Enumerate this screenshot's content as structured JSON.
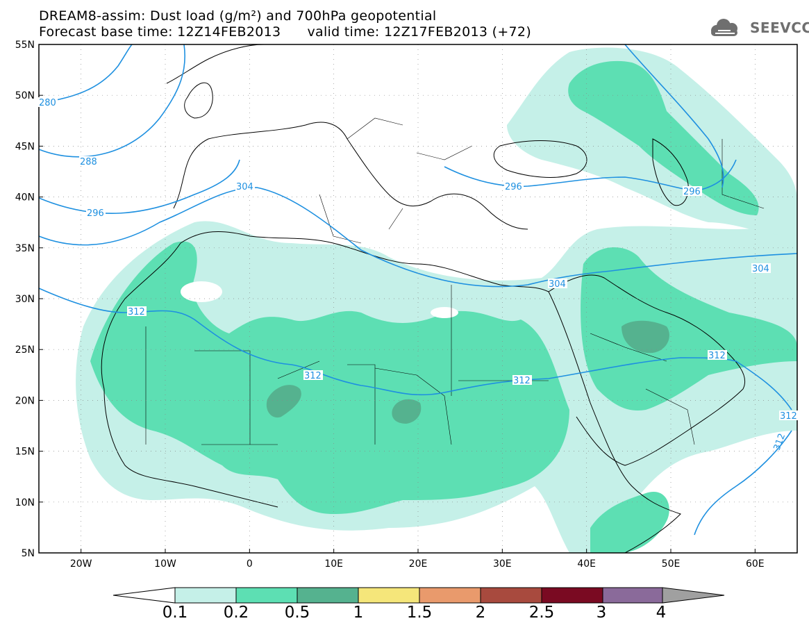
{
  "title": {
    "line1": "DREAM8-assim: Dust load (g/m²) and 700hPa geopotential",
    "line2": "Forecast base time: 12Z14FEB2013      valid time: 12Z17FEB2013 (+72)"
  },
  "logo": {
    "text": "SEEVCCC",
    "icon": "cloud-icon"
  },
  "colors": {
    "contour": "#1e90e0",
    "dust_0_1": "#c5f0e8",
    "dust_0_2": "#5ddfb3",
    "dust_0_5": "#55b28f",
    "dust_1": "#f5e67a",
    "dust_1_5": "#e99a6c",
    "dust_2": "#a84a3e",
    "dust_2_5": "#7a0a22",
    "dust_3": "#8a6a9a",
    "dust_4": "#a0a0a0"
  },
  "map": {
    "lat_labels": [
      "55N",
      "50N",
      "45N",
      "40N",
      "35N",
      "30N",
      "25N",
      "20N",
      "15N",
      "10N",
      "5N"
    ],
    "lon_labels": [
      "20W",
      "10W",
      "0",
      "10E",
      "20E",
      "30E",
      "40E",
      "50E",
      "60E"
    ],
    "lon_range": [
      -25,
      65
    ],
    "lat_range": [
      5,
      55
    ],
    "contour_labels": [
      "280",
      "288",
      "296",
      "304",
      "312",
      "312",
      "312",
      "304",
      "296",
      "296",
      "304",
      "312",
      "312",
      "312"
    ]
  },
  "colorbar": {
    "levels": [
      "0.1",
      "0.2",
      "0.5",
      "1",
      "1.5",
      "2",
      "2.5",
      "3",
      "4"
    ]
  }
}
